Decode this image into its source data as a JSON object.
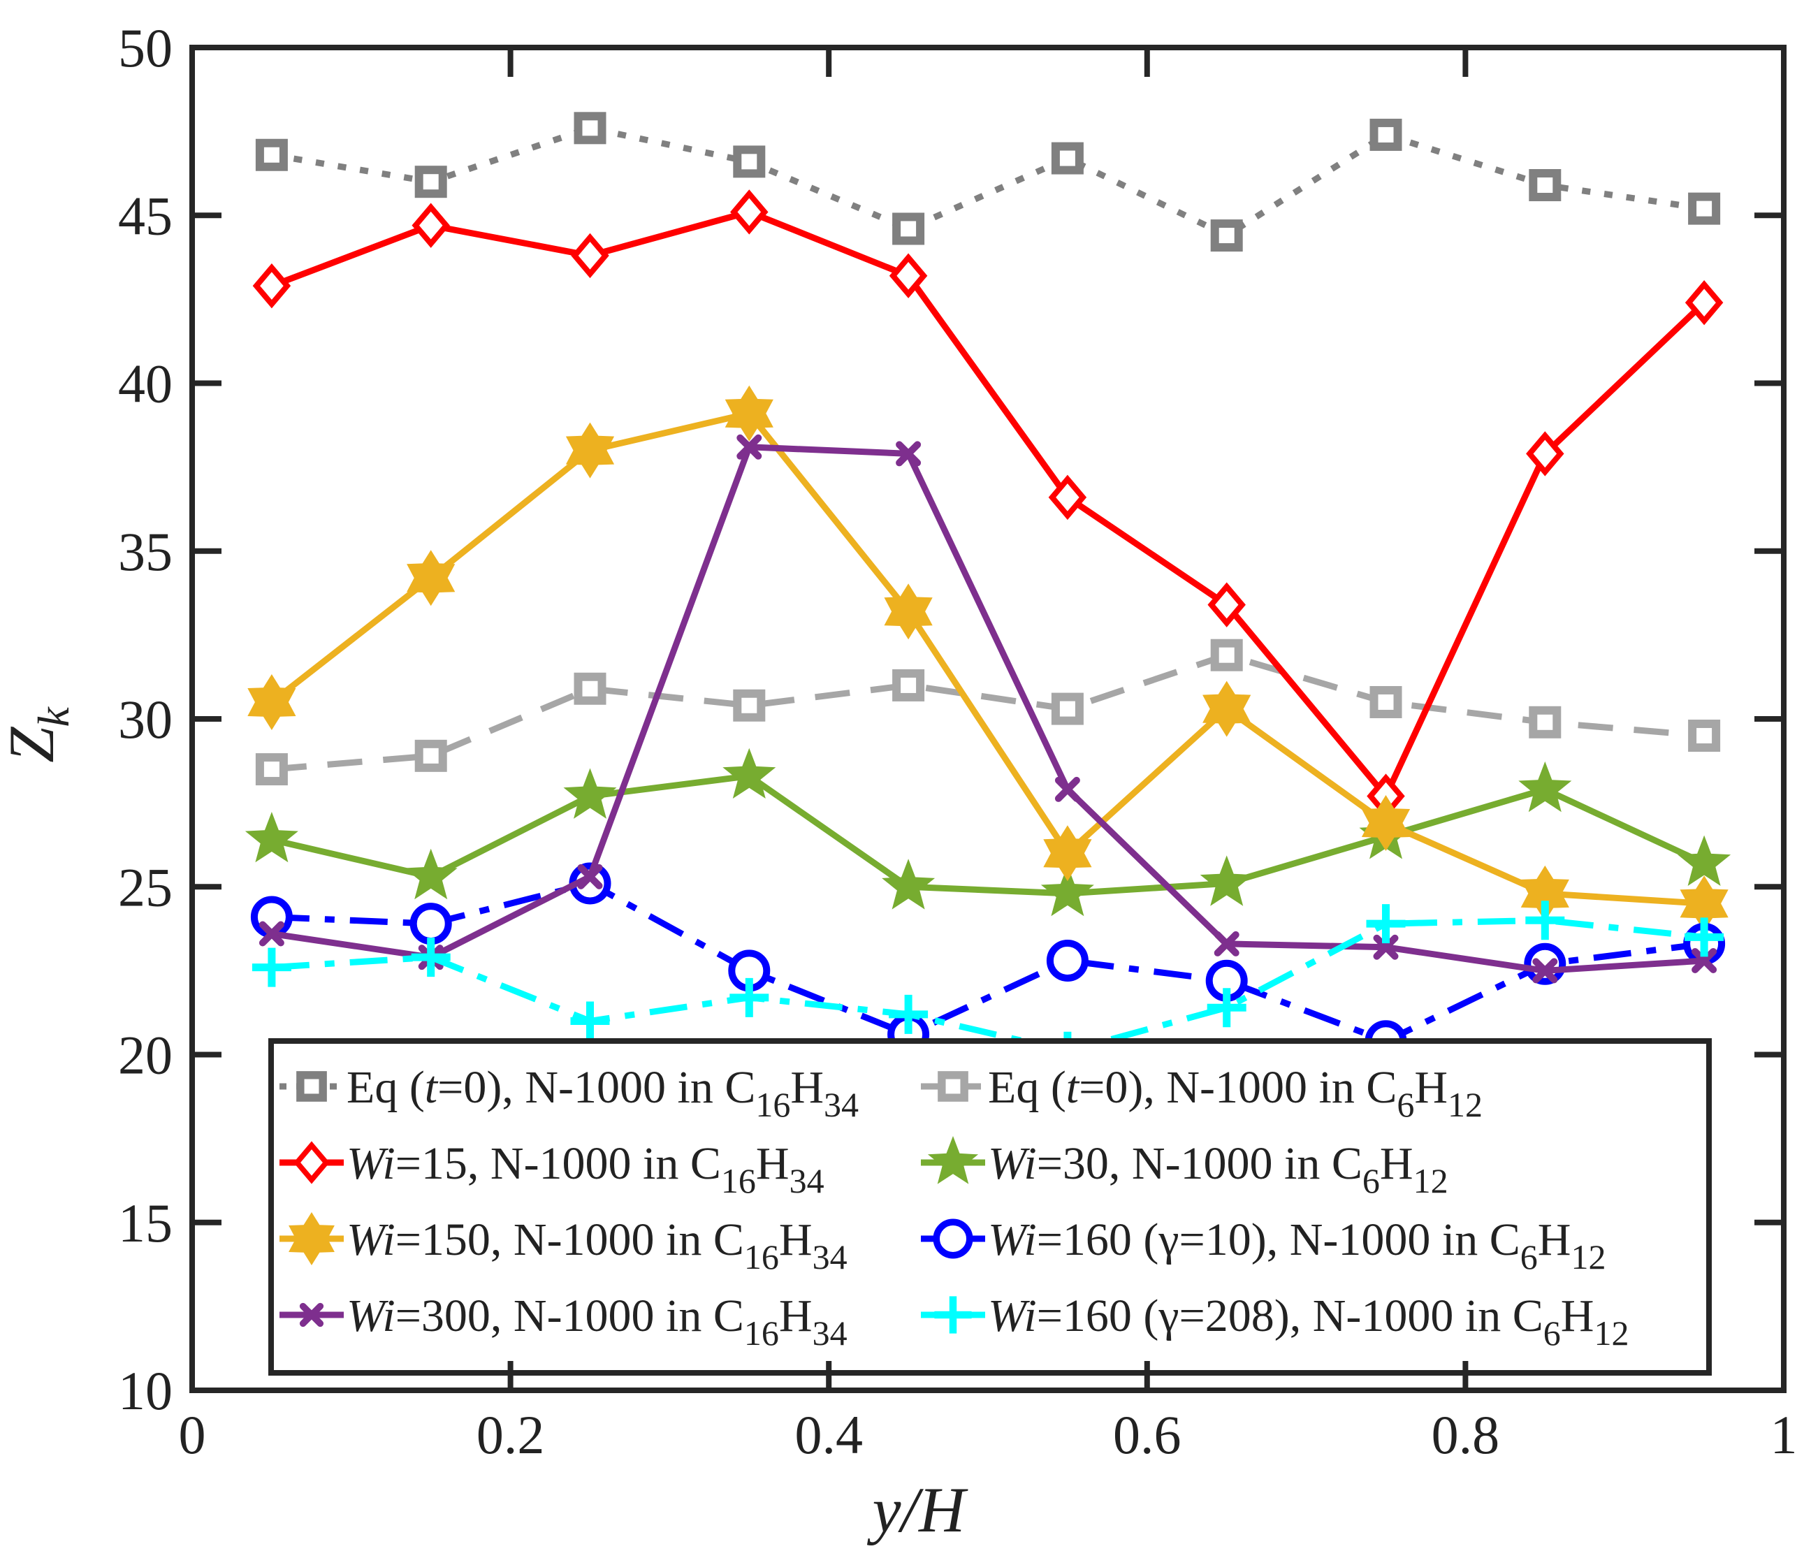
{
  "chart_data": {
    "type": "line",
    "title": "",
    "xlabel": "y/H",
    "ylabel": "Z",
    "ylabel_sub": "k",
    "xlim": [
      0,
      1
    ],
    "ylim": [
      10,
      50
    ],
    "xticks": [
      0,
      0.2,
      0.4,
      0.6,
      0.8,
      1
    ],
    "xtick_labels": [
      "0",
      "0.2",
      "0.4",
      "0.6",
      "0.8",
      "1"
    ],
    "yticks": [
      10,
      15,
      20,
      25,
      30,
      35,
      40,
      45,
      50
    ],
    "ytick_labels": [
      "10",
      "15",
      "20",
      "25",
      "30",
      "35",
      "40",
      "45",
      "50"
    ],
    "grid": false,
    "legend_position": "bottom-center",
    "x": [
      0.05,
      0.15,
      0.25,
      0.35,
      0.45,
      0.55,
      0.65,
      0.75,
      0.85,
      0.95
    ],
    "series": [
      {
        "name": "Eq (t=0), N-1000 in C16H34",
        "legend": {
          "prefix": "Eq (",
          "italic": "t",
          "mid": "=0), N-1000 in C",
          "sub1": "16",
          "h": "H",
          "sub2": "34"
        },
        "color": "#808080",
        "dash": "dotted",
        "marker": "square",
        "values": [
          46.8,
          46.0,
          47.6,
          46.6,
          44.6,
          46.7,
          44.4,
          47.4,
          45.9,
          45.2
        ]
      },
      {
        "name": "Eq (t=0), N-1000 in C6H12",
        "legend": {
          "prefix": "Eq (",
          "italic": "t",
          "mid": "=0), N-1000 in C",
          "sub1": "6",
          "h": "H",
          "sub2": "12"
        },
        "color": "#a6a6a6",
        "dash": "dashed",
        "marker": "square",
        "values": [
          28.5,
          28.9,
          30.9,
          30.4,
          31.0,
          30.3,
          31.9,
          30.5,
          29.9,
          29.5
        ]
      },
      {
        "name": "Wi=15, N-1000 in C16H34",
        "legend": {
          "prefix": "",
          "italic": "Wi",
          "mid": "=15,   N-1000 in C",
          "sub1": "16",
          "h": "H",
          "sub2": "34"
        },
        "color": "#ff0000",
        "dash": "solid",
        "marker": "diamond",
        "values": [
          42.9,
          44.7,
          43.8,
          45.1,
          43.2,
          36.6,
          33.4,
          27.7,
          37.9,
          42.4
        ]
      },
      {
        "name": "Wi=30, N-1000 in C6H12",
        "legend": {
          "prefix": "",
          "italic": "Wi",
          "mid": "=30,   N-1000 in C",
          "sub1": "6",
          "h": "H",
          "sub2": "12"
        },
        "color": "#77ac30",
        "dash": "solid",
        "marker": "pentagram",
        "values": [
          26.4,
          25.3,
          27.7,
          28.3,
          25.0,
          24.8,
          25.1,
          26.5,
          27.9,
          25.7
        ]
      },
      {
        "name": "Wi=150, N-1000 in C16H34",
        "legend": {
          "prefix": "",
          "italic": "Wi",
          "mid": "=150, N-1000 in C",
          "sub1": "16",
          "h": "H",
          "sub2": "34"
        },
        "color": "#edb120",
        "dash": "solid",
        "marker": "hexagram",
        "values": [
          30.5,
          34.2,
          38.0,
          39.1,
          33.2,
          26.0,
          30.3,
          26.9,
          24.8,
          24.5
        ]
      },
      {
        "name": "Wi=160 (γ=10), N-1000 in C6H12",
        "legend": {
          "prefix": "",
          "italic": "Wi",
          "mid": "=160 (γ=10),   N-1000 in C",
          "sub1": "6",
          "h": "H",
          "sub2": "12"
        },
        "color": "#0000ff",
        "dash": "dashdot",
        "marker": "circle",
        "values": [
          24.1,
          23.9,
          25.1,
          22.5,
          20.6,
          22.8,
          22.2,
          20.4,
          22.7,
          23.3
        ]
      },
      {
        "name": "Wi=300, N-1000 in C16H34",
        "legend": {
          "prefix": "",
          "italic": "Wi",
          "mid": "=300, N-1000 in C",
          "sub1": "16",
          "h": "H",
          "sub2": "34"
        },
        "color": "#7e2f8e",
        "dash": "solid",
        "marker": "x",
        "values": [
          23.6,
          22.9,
          25.3,
          38.1,
          37.9,
          27.9,
          23.3,
          23.2,
          22.5,
          22.8
        ]
      },
      {
        "name": "Wi=160 (γ=208), N-1000 in C6H12",
        "legend": {
          "prefix": "",
          "italic": "Wi",
          "mid": "=160 (γ=208), N-1000 in C",
          "sub1": "6",
          "h": "H",
          "sub2": "12"
        },
        "color": "#00ffff",
        "dash": "dashdot",
        "marker": "plus",
        "values": [
          22.6,
          22.9,
          21.0,
          21.7,
          21.2,
          20.1,
          21.4,
          23.9,
          24.0,
          23.5
        ]
      }
    ]
  }
}
